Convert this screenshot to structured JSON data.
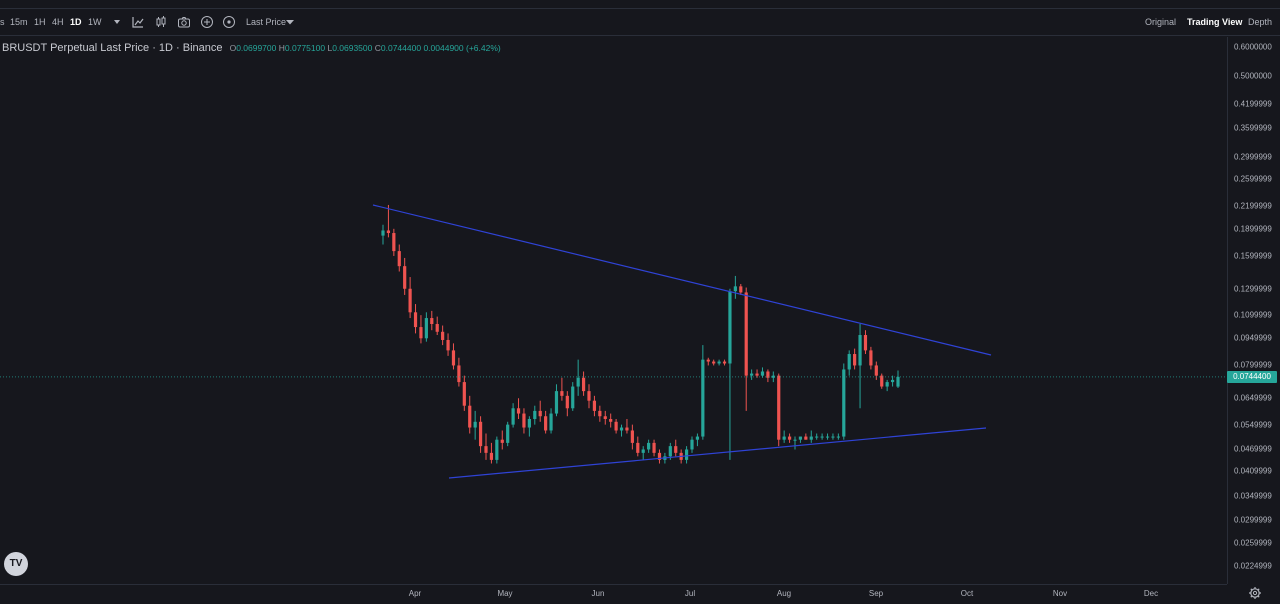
{
  "toolbar": {
    "timeframes": [
      {
        "label": "s",
        "active": false
      },
      {
        "label": "15m",
        "active": false
      },
      {
        "label": "1H",
        "active": false
      },
      {
        "label": "4H",
        "active": false
      },
      {
        "label": "1D",
        "active": true
      },
      {
        "label": "1W",
        "active": false
      }
    ],
    "price_type": "Last Price",
    "views": [
      {
        "label": "Original",
        "active": false
      },
      {
        "label": "Trading View",
        "active": true
      },
      {
        "label": "Depth",
        "active": false
      }
    ]
  },
  "legend": {
    "symbol": "BRUSDT Perpetual Last Price · 1D · Binance",
    "o_label": "O",
    "o": "0.0699700",
    "h_label": "H",
    "h": "0.0775100",
    "l_label": "L",
    "l": "0.0693500",
    "c_label": "C",
    "c": "0.0744400",
    "change": "0.0044900 (+6.42%)"
  },
  "last_price": "0.0744400",
  "colors": {
    "up": "#26a69a",
    "down": "#ef5350",
    "trendline": "#2f43d6",
    "background": "#16171d"
  },
  "logo_text": "TV",
  "chart_data": {
    "type": "candlestick",
    "y_scale": "log",
    "y_ticks": [
      "0.6000000",
      "0.5000000",
      "0.4199999",
      "0.3599999",
      "0.2999999",
      "0.2599999",
      "0.2199999",
      "0.1899999",
      "0.1599999",
      "0.1299999",
      "0.1099999",
      "0.0949999",
      "0.0799999",
      "0.0649999",
      "0.0549999",
      "0.0469999",
      "0.0409999",
      "0.0349999",
      "0.0299999",
      "0.0259999",
      "0.0224999"
    ],
    "x_ticks": [
      "Apr",
      "May",
      "Jun",
      "Jul",
      "Aug",
      "Sep",
      "Oct",
      "Nov",
      "Dec"
    ],
    "ylim": [
      0.0215,
      0.62
    ],
    "series": [
      {
        "name": "BRUSDT",
        "values": [
          [
            0.182,
            0.195,
            0.172,
            0.188
          ],
          [
            0.188,
            0.221,
            0.18,
            0.185
          ],
          [
            0.185,
            0.19,
            0.16,
            0.165
          ],
          [
            0.165,
            0.172,
            0.145,
            0.15
          ],
          [
            0.15,
            0.158,
            0.125,
            0.13
          ],
          [
            0.13,
            0.14,
            0.108,
            0.112
          ],
          [
            0.112,
            0.118,
            0.098,
            0.102
          ],
          [
            0.102,
            0.11,
            0.092,
            0.095
          ],
          [
            0.095,
            0.112,
            0.093,
            0.108
          ],
          [
            0.108,
            0.113,
            0.1,
            0.104
          ],
          [
            0.104,
            0.109,
            0.097,
            0.099
          ],
          [
            0.099,
            0.103,
            0.091,
            0.094
          ],
          [
            0.094,
            0.098,
            0.085,
            0.088
          ],
          [
            0.088,
            0.092,
            0.078,
            0.08
          ],
          [
            0.08,
            0.084,
            0.07,
            0.072
          ],
          [
            0.072,
            0.075,
            0.06,
            0.062
          ],
          [
            0.062,
            0.066,
            0.052,
            0.054
          ],
          [
            0.054,
            0.06,
            0.05,
            0.056
          ],
          [
            0.056,
            0.058,
            0.046,
            0.048
          ],
          [
            0.048,
            0.052,
            0.044,
            0.046
          ],
          [
            0.046,
            0.049,
            0.043,
            0.044
          ],
          [
            0.044,
            0.051,
            0.043,
            0.05
          ],
          [
            0.05,
            0.053,
            0.047,
            0.049
          ],
          [
            0.049,
            0.056,
            0.048,
            0.055
          ],
          [
            0.055,
            0.063,
            0.054,
            0.061
          ],
          [
            0.061,
            0.065,
            0.057,
            0.059
          ],
          [
            0.059,
            0.061,
            0.052,
            0.054
          ],
          [
            0.054,
            0.058,
            0.051,
            0.057
          ],
          [
            0.057,
            0.062,
            0.055,
            0.06
          ],
          [
            0.06,
            0.064,
            0.056,
            0.058
          ],
          [
            0.058,
            0.06,
            0.052,
            0.053
          ],
          [
            0.053,
            0.061,
            0.052,
            0.059
          ],
          [
            0.059,
            0.071,
            0.058,
            0.068
          ],
          [
            0.068,
            0.074,
            0.064,
            0.066
          ],
          [
            0.066,
            0.068,
            0.058,
            0.061
          ],
          [
            0.061,
            0.072,
            0.06,
            0.07
          ],
          [
            0.07,
            0.083,
            0.066,
            0.074
          ],
          [
            0.074,
            0.077,
            0.066,
            0.068
          ],
          [
            0.068,
            0.071,
            0.061,
            0.064
          ],
          [
            0.064,
            0.066,
            0.058,
            0.06
          ],
          [
            0.06,
            0.062,
            0.056,
            0.058
          ],
          [
            0.058,
            0.06,
            0.055,
            0.057
          ],
          [
            0.057,
            0.059,
            0.054,
            0.056
          ],
          [
            0.056,
            0.057,
            0.052,
            0.053
          ],
          [
            0.053,
            0.055,
            0.051,
            0.054
          ],
          [
            0.054,
            0.057,
            0.052,
            0.053
          ],
          [
            0.053,
            0.055,
            0.047,
            0.049
          ],
          [
            0.049,
            0.051,
            0.045,
            0.046
          ],
          [
            0.046,
            0.048,
            0.044,
            0.047
          ],
          [
            0.047,
            0.05,
            0.046,
            0.049
          ],
          [
            0.049,
            0.05,
            0.045,
            0.046
          ],
          [
            0.046,
            0.047,
            0.043,
            0.044
          ],
          [
            0.044,
            0.046,
            0.043,
            0.045
          ],
          [
            0.045,
            0.049,
            0.044,
            0.048
          ],
          [
            0.048,
            0.05,
            0.045,
            0.046
          ],
          [
            0.046,
            0.047,
            0.043,
            0.044
          ],
          [
            0.044,
            0.048,
            0.043,
            0.047
          ],
          [
            0.047,
            0.051,
            0.046,
            0.05
          ],
          [
            0.05,
            0.052,
            0.048,
            0.051
          ],
          [
            0.051,
            0.091,
            0.05,
            0.083
          ],
          [
            0.083,
            0.084,
            0.08,
            0.082
          ],
          [
            0.082,
            0.083,
            0.08,
            0.081
          ],
          [
            0.081,
            0.083,
            0.08,
            0.082
          ],
          [
            0.082,
            0.083,
            0.08,
            0.081
          ],
          [
            0.081,
            0.13,
            0.044,
            0.128
          ],
          [
            0.128,
            0.141,
            0.122,
            0.132
          ],
          [
            0.132,
            0.134,
            0.125,
            0.127
          ],
          [
            0.127,
            0.131,
            0.06,
            0.075
          ],
          [
            0.075,
            0.078,
            0.073,
            0.076
          ],
          [
            0.076,
            0.078,
            0.074,
            0.075
          ],
          [
            0.075,
            0.079,
            0.074,
            0.077
          ],
          [
            0.077,
            0.078,
            0.072,
            0.074
          ],
          [
            0.074,
            0.077,
            0.072,
            0.075
          ],
          [
            0.075,
            0.076,
            0.048,
            0.05
          ],
          [
            0.05,
            0.053,
            0.049,
            0.051
          ],
          [
            0.051,
            0.052,
            0.049,
            0.05
          ],
          [
            0.05,
            0.051,
            0.047,
            0.05
          ],
          [
            0.05,
            0.051,
            0.049,
            0.051
          ],
          [
            0.051,
            0.052,
            0.05,
            0.05
          ],
          [
            0.05,
            0.053,
            0.049,
            0.051
          ],
          [
            0.051,
            0.052,
            0.05,
            0.051
          ],
          [
            0.051,
            0.052,
            0.05,
            0.051
          ],
          [
            0.051,
            0.052,
            0.05,
            0.051
          ],
          [
            0.051,
            0.052,
            0.05,
            0.051
          ],
          [
            0.051,
            0.052,
            0.05,
            0.051
          ],
          [
            0.051,
            0.081,
            0.05,
            0.078
          ],
          [
            0.078,
            0.088,
            0.075,
            0.086
          ],
          [
            0.086,
            0.089,
            0.078,
            0.08
          ],
          [
            0.08,
            0.104,
            0.061,
            0.097
          ],
          [
            0.097,
            0.1,
            0.086,
            0.088
          ],
          [
            0.088,
            0.09,
            0.078,
            0.08
          ],
          [
            0.08,
            0.082,
            0.073,
            0.075
          ],
          [
            0.075,
            0.076,
            0.069,
            0.07
          ],
          [
            0.07,
            0.073,
            0.068,
            0.072
          ],
          [
            0.072,
            0.075,
            0.07,
            0.073
          ],
          [
            0.06997,
            0.07751,
            0.06935,
            0.07444
          ]
        ]
      }
    ]
  }
}
